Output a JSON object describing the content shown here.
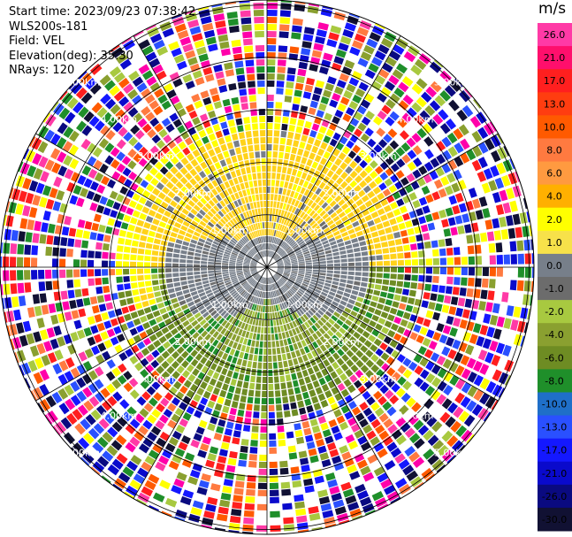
{
  "info": {
    "start_time": "Start time: 2023/09/23 07:38:42",
    "instrument": "WLS200s-181",
    "field": "Field: VEL",
    "elevation": "Elevation(deg): 35.30",
    "nrays": "NRays: 120"
  },
  "colorbar": {
    "unit": "m/s",
    "ticks": [
      "26.0",
      "21.0",
      "17.0",
      "13.0",
      "10.0",
      "8.0",
      "6.0",
      "4.0",
      "2.0",
      "1.0",
      "0.0",
      "-1.0",
      "-2.0",
      "-4.0",
      "-6.0",
      "-8.0",
      "-10.0",
      "-13.0",
      "-17.0",
      "-21.0",
      "-26.0",
      "-30.0"
    ],
    "colors": [
      "#ff3aa6",
      "#ff0f6c",
      "#ff1f1f",
      "#ff3d10",
      "#ff5a00",
      "#ff7a40",
      "#ff9a40",
      "#ffb000",
      "#ffff00",
      "#f7e14a",
      "#777f8a",
      "#6c6c6c",
      "#a8c940",
      "#8aa030",
      "#6e8c23",
      "#1f8f2a",
      "#1f6fc8",
      "#2a50ff",
      "#1418ff",
      "#0a0acc",
      "#0a0a80",
      "#111133"
    ]
  },
  "chart_data": {
    "type": "heatmap",
    "projection": "polar-ppi",
    "field": "VEL",
    "units": "m/s",
    "nrays": 120,
    "range_ring_labels": [
      "1.00km",
      "2.00km",
      "3.00km",
      "4.00km",
      "5.00km"
    ],
    "range_rings_km": [
      1,
      2,
      3,
      4,
      5
    ],
    "max_range_km": 5.6,
    "color_scale": [
      -30,
      26
    ],
    "legend_placement": "right"
  }
}
